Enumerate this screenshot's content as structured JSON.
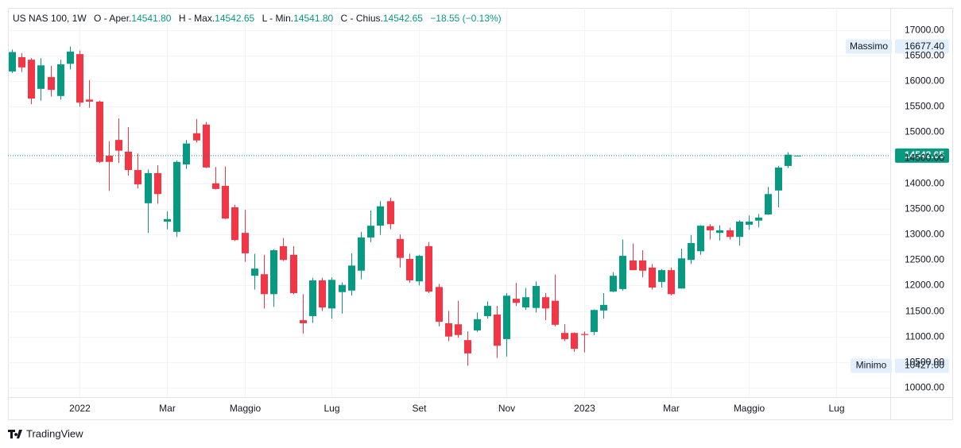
{
  "chart_data": {
    "type": "candlestick",
    "header": {
      "symbol": "US NAS 100, 1W",
      "open_label": "O - Aper.",
      "open": "14541.80",
      "high_label": "H - Max.",
      "high": "14542.65",
      "low_label": "L - Min.",
      "low": "14541.80",
      "close_label": "C - Chius.",
      "close": "14542.65",
      "change": "−18.55 (−0.13%)"
    },
    "up_color": "#089981",
    "down_color": "#f23645",
    "open": [
      16190,
      16470,
      16420,
      15850,
      16080,
      15710,
      16340,
      16530,
      15640,
      15600,
      14540,
      14850,
      14620,
      14260,
      13610,
      14200,
      13250,
      13050,
      14370,
      14980,
      15150,
      14000,
      13950,
      13530,
      13030,
      12190,
      12220,
      11830,
      12770,
      12600,
      11320,
      11400,
      12100,
      11550,
      11870,
      11900,
      12290,
      12940,
      13170,
      13650,
      12910,
      12520,
      12080,
      12770,
      11970,
      11260,
      11240,
      10930,
      11120,
      11400,
      11430,
      10950,
      11740,
      11570,
      11560,
      11770,
      11700,
      11070,
      11070,
      11050,
      11090,
      11510,
      11880,
      11930,
      12490,
      12490,
      12350,
      12070,
      12300,
      11940,
      12500,
      12670,
      13160,
      13030,
      13080,
      12950,
      13190,
      13270,
      13390,
      13860,
      14340,
      14541.8
    ],
    "high": [
      16620,
      16550,
      16450,
      16450,
      16300,
      16420,
      16677.4,
      16600,
      16020,
      15620,
      14820,
      15270,
      15100,
      14580,
      14270,
      14350,
      13450,
      14450,
      14850,
      15260,
      15200,
      14320,
      14330,
      13580,
      13480,
      12620,
      12600,
      12710,
      12930,
      12770,
      11830,
      12150,
      12150,
      12160,
      12060,
      12630,
      13050,
      13470,
      13650,
      13720,
      13000,
      12620,
      12600,
      12850,
      12030,
      11500,
      11700,
      11100,
      11470,
      11690,
      11600,
      11850,
      12050,
      11950,
      12080,
      11850,
      12210,
      11240,
      11080,
      11100,
      11530,
      11850,
      12260,
      12900,
      12820,
      12690,
      12420,
      12320,
      12350,
      12720,
      12990,
      13180,
      13200,
      13180,
      13130,
      13280,
      13370,
      13400,
      13930,
      14340,
      14610,
      14542.65
    ],
    "low": [
      16160,
      16180,
      15550,
      15620,
      15700,
      15640,
      16230,
      15500,
      15480,
      14400,
      13850,
      14400,
      14150,
      13900,
      13030,
      13600,
      13100,
      12950,
      14280,
      14800,
      14300,
      13880,
      13300,
      12870,
      12460,
      11920,
      11550,
      11580,
      12480,
      11830,
      11060,
      11270,
      11500,
      11350,
      11450,
      11800,
      12120,
      12850,
      12990,
      13100,
      12350,
      12050,
      12000,
      11850,
      11200,
      10910,
      10980,
      10427,
      11090,
      11350,
      10580,
      10610,
      11600,
      11520,
      11470,
      11320,
      11200,
      10910,
      10700,
      10690,
      11030,
      11350,
      11870,
      11900,
      12300,
      12160,
      11920,
      11960,
      11800,
      11940,
      12420,
      12600,
      12900,
      12880,
      12900,
      12780,
      13090,
      13140,
      13380,
      13530,
      14300,
      14541.8
    ],
    "close": [
      16570,
      16270,
      15660,
      16310,
      15830,
      16330,
      16580,
      15580,
      15600,
      14420,
      14420,
      14640,
      14260,
      13980,
      14200,
      13790,
      13300,
      14420,
      14780,
      14840,
      14310,
      13890,
      13310,
      12890,
      12630,
      12330,
      11830,
      12690,
      12500,
      11850,
      11260,
      12100,
      11570,
      12110,
      12010,
      12390,
      12940,
      13170,
      13550,
      13200,
      12540,
      12100,
      12580,
      11880,
      11290,
      11000,
      11030,
      10670,
      11340,
      11600,
      10820,
      11800,
      11660,
      11770,
      11990,
      11550,
      11230,
      10950,
      10760,
      11030,
      11520,
      11620,
      12190,
      12580,
      12300,
      12290,
      11960,
      12300,
      11830,
      12530,
      12830,
      13170,
      13080,
      13080,
      12950,
      13250,
      13250,
      13330,
      13790,
      14310,
      14561.2,
      14542.65
    ],
    "xlim": [
      -0.4,
      90.6
    ],
    "xticks": [
      {
        "value": 7,
        "label": "2022"
      },
      {
        "value": 16,
        "label": "Mar"
      },
      {
        "value": 24,
        "label": "Maggio"
      },
      {
        "value": 33,
        "label": "Lug"
      },
      {
        "value": 42,
        "label": "Set"
      },
      {
        "value": 51,
        "label": "Nov"
      },
      {
        "value": 59,
        "label": "2023"
      },
      {
        "value": 68,
        "label": "Mar"
      },
      {
        "value": 76,
        "label": "Maggio"
      },
      {
        "value": 85,
        "label": "Lug"
      }
    ],
    "ylim": [
      9813,
      17434
    ],
    "yticks": [
      {
        "value": 10000,
        "label": "10000.00"
      },
      {
        "value": 10500,
        "label": "10500.00"
      },
      {
        "value": 11000,
        "label": "11000.00"
      },
      {
        "value": 11500,
        "label": "11500.00"
      },
      {
        "value": 12000,
        "label": "12000.00"
      },
      {
        "value": 12500,
        "label": "12500.00"
      },
      {
        "value": 13000,
        "label": "13000.00"
      },
      {
        "value": 13500,
        "label": "13500.00"
      },
      {
        "value": 14000,
        "label": "14000.00"
      },
      {
        "value": 14500,
        "label": "14500.00"
      },
      {
        "value": 15000,
        "label": "15000.00"
      },
      {
        "value": 15500,
        "label": "15500.00"
      },
      {
        "value": 16000,
        "label": "16000.00"
      },
      {
        "value": 16500,
        "label": "16500.00"
      },
      {
        "value": 17000,
        "label": "17000.00"
      }
    ],
    "grid": true,
    "markers": [
      {
        "label": "Massimo",
        "value": 16677.4,
        "value_label": "16677.40"
      },
      {
        "label": "Minimo",
        "value": 10427,
        "value_label": "10427.00"
      }
    ],
    "last_price": {
      "value": 14542.65,
      "label": "14542.65"
    },
    "brand": "TradingView"
  }
}
